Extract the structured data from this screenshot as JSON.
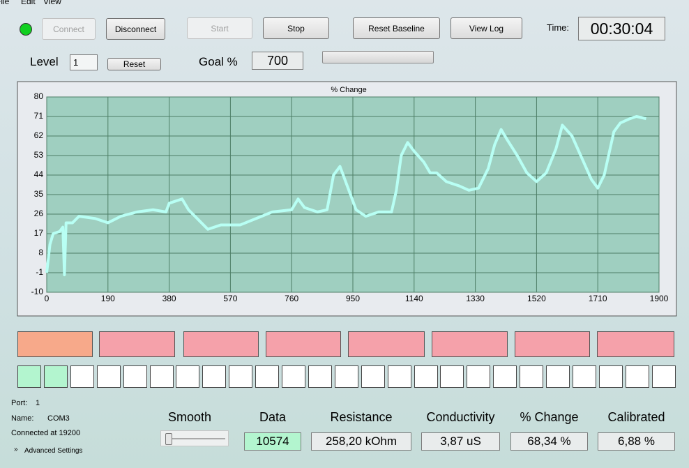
{
  "menu": [
    "File",
    "Edit",
    "View"
  ],
  "buttons": {
    "connect": "Connect",
    "disconnect": "Disconnect",
    "start": "Start",
    "stop": "Stop",
    "reset_baseline": "Reset Baseline",
    "view_log": "View Log",
    "reset": "Reset"
  },
  "time": {
    "label": "Time:",
    "value": "00:30:04"
  },
  "level": {
    "label": "Level",
    "value": "1"
  },
  "goal": {
    "label": "Goal %",
    "value": "700"
  },
  "chart_data": {
    "type": "line",
    "title": "% Change",
    "color": "#b8fff4",
    "grid": true,
    "x": [
      0,
      10,
      20,
      40,
      50,
      55,
      60,
      80,
      100,
      150,
      190,
      230,
      280,
      330,
      370,
      380,
      420,
      440,
      480,
      500,
      540,
      600,
      650,
      700,
      760,
      780,
      800,
      840,
      870,
      890,
      910,
      930,
      960,
      990,
      1030,
      1070,
      1085,
      1100,
      1120,
      1140,
      1170,
      1190,
      1210,
      1240,
      1280,
      1310,
      1340,
      1370,
      1390,
      1410,
      1430,
      1460,
      1490,
      1520,
      1550,
      1580,
      1600,
      1630,
      1660,
      1690,
      1710,
      1730,
      1760,
      1780,
      1810,
      1830,
      1860
    ],
    "values": [
      -1,
      12,
      17,
      18,
      20,
      -2,
      22,
      22,
      25,
      24,
      22,
      25,
      27,
      28,
      27,
      31,
      33,
      28,
      22,
      19,
      21,
      21,
      24,
      27,
      28,
      33,
      29,
      27,
      28,
      44,
      48,
      40,
      28,
      25,
      27,
      27,
      37,
      53,
      59,
      55,
      50,
      45,
      45,
      41,
      39,
      37,
      38,
      47,
      58,
      65,
      60,
      53,
      45,
      41,
      45,
      56,
      67,
      62,
      52,
      42,
      38,
      44,
      64,
      68,
      70,
      71,
      70
    ],
    "xlim": [
      0,
      1900
    ],
    "xticks": [
      0,
      190,
      380,
      570,
      760,
      950,
      1140,
      1330,
      1520,
      1710,
      1900
    ],
    "ylim": [
      -10,
      80
    ],
    "yticks": [
      -10,
      -1,
      8,
      17,
      26,
      35,
      44,
      53,
      62,
      71,
      80
    ]
  },
  "status": {
    "port_label": "Port:",
    "port": "1",
    "name_label": "Name:",
    "name": "COM3",
    "connection": "Connected at 19200",
    "advanced": "Advanced Settings"
  },
  "smooth_label": "Smooth",
  "readouts": [
    {
      "label": "Data",
      "value": "10574"
    },
    {
      "label": "Resistance",
      "value": "258,20 kOhm"
    },
    {
      "label": "Conductivity",
      "value": "3,87 uS"
    },
    {
      "label": "% Change",
      "value": "68,34 %"
    },
    {
      "label": "Calibrated",
      "value": "6,88 %"
    }
  ]
}
